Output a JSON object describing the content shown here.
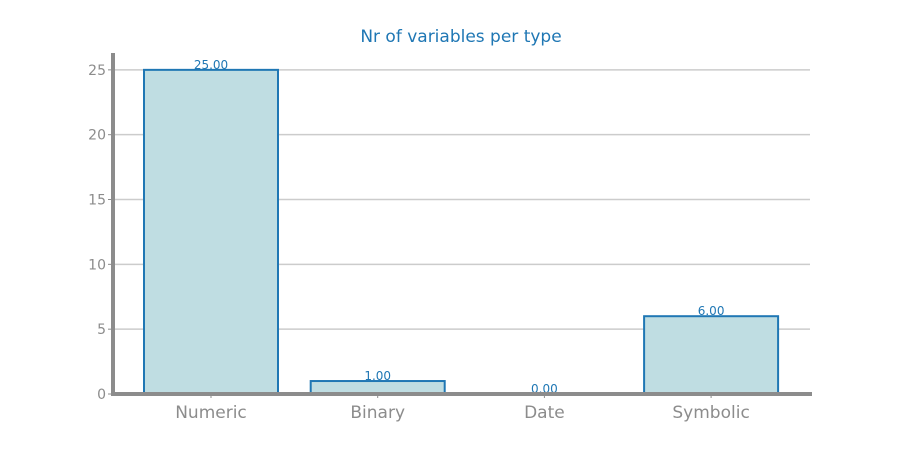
{
  "chart_data": {
    "type": "bar",
    "title": "Nr of variables per type",
    "xlabel": "",
    "ylabel": "",
    "categories": [
      "Numeric",
      "Binary",
      "Date",
      "Symbolic"
    ],
    "values": [
      25,
      1,
      0,
      6
    ],
    "data_labels": [
      "25.00",
      "1.00",
      "0.00",
      "6.00"
    ],
    "yticks": [
      0,
      5,
      10,
      15,
      20,
      25
    ],
    "ylim": [
      0,
      26.3
    ],
    "grid": "horizontal",
    "colors": {
      "bar_fill": "#bfdde2",
      "bar_edge": "#1f77b4",
      "text": "#1f77b4",
      "axis": "#8c8c8c",
      "grid": "#cccccc"
    }
  }
}
